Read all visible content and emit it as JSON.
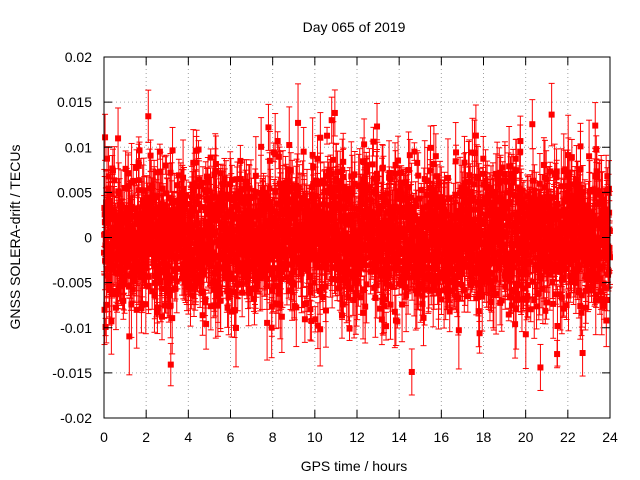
{
  "chart_data": {
    "type": "scatter",
    "title": "Day 065 of 2019",
    "xlabel": "GPS time / hours",
    "ylabel": "GNSS SOLERA-drift / TECUs",
    "xlim": [
      0,
      24
    ],
    "ylim": [
      -0.02,
      0.02
    ],
    "x_ticks": [
      0,
      2,
      4,
      6,
      8,
      10,
      12,
      14,
      16,
      18,
      20,
      22,
      24
    ],
    "x_tick_labels": [
      "0",
      "2",
      "4",
      "6",
      "8",
      "10",
      "12",
      "14",
      "16",
      "18",
      "20",
      "22",
      "24"
    ],
    "y_ticks": [
      -0.02,
      -0.015,
      -0.01,
      -0.005,
      0,
      0.005,
      0.01,
      0.015,
      0.02
    ],
    "y_tick_labels": [
      "-0.02",
      "-0.015",
      "-0.01",
      "-0.005",
      "0",
      "0.005",
      "0.01",
      "0.015",
      "0.02"
    ],
    "grid": true,
    "series_color": "#ff0000",
    "marker": "square",
    "error_bars": true,
    "sampling": {
      "x_start": 0.0,
      "x_end": 24.0,
      "count": 2880
    },
    "value_std": 0.0038,
    "value_clip": [
      -0.0155,
      0.0155
    ],
    "error_range": [
      0.0006,
      0.0045
    ],
    "notable_points": [
      {
        "x": 0.05,
        "y": 0.0111
      },
      {
        "x": 10.95,
        "y": 0.0138
      },
      {
        "x": 10.8,
        "y": 0.013
      },
      {
        "x": 12.95,
        "y": 0.0123
      },
      {
        "x": 23.3,
        "y": 0.0124
      },
      {
        "x": 14.6,
        "y": -0.0149
      },
      {
        "x": 20.7,
        "y": -0.0144
      },
      {
        "x": 22.7,
        "y": -0.0128
      },
      {
        "x": 7.8,
        "y": 0.0122
      },
      {
        "x": 22.6,
        "y": 0.0101
      }
    ]
  }
}
